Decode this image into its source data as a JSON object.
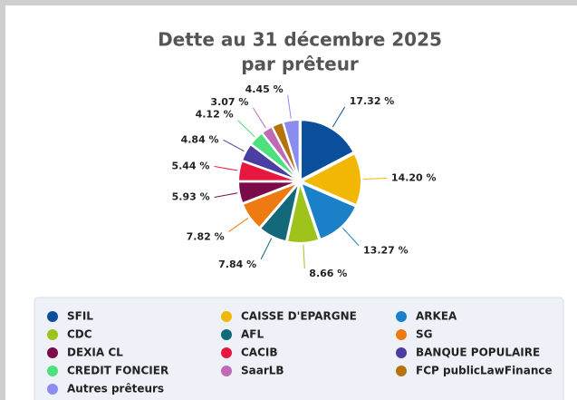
{
  "chart_data": {
    "type": "pie",
    "title": "Dette au 31 décembre 2025",
    "subtitle": "par prêteur",
    "categories": [
      "SFIL",
      "CAISSE D'EPARGNE",
      "ARKEA",
      "CDC",
      "AFL",
      "SG",
      "DEXIA CL",
      "CACIB",
      "BANQUE POPULAIRE",
      "CREDIT FONCIER",
      "SaarLB",
      "FCP publicLawFinance",
      "Autres prêteurs"
    ],
    "values": [
      17.32,
      14.2,
      13.27,
      8.66,
      7.84,
      7.82,
      5.93,
      5.44,
      4.84,
      4.12,
      3.07,
      3.04,
      4.45
    ],
    "value_labels": [
      "17.32 %",
      "14.20 %",
      "13.27 %",
      "8.66 %",
      "7.84 %",
      "7.82 %",
      "5.93 %",
      "5.44 %",
      "4.84 %",
      "4.12 %",
      "3.07 %",
      null,
      "4.45 %"
    ],
    "colors": [
      "#0b4f9c",
      "#f2b705",
      "#1a80c8",
      "#9ec41c",
      "#13687a",
      "#ee7a12",
      "#7a0a4a",
      "#e8173d",
      "#4a3fa0",
      "#4ee07e",
      "#c06ab5",
      "#b5730d",
      "#8a8cf0"
    ],
    "legend": "bottom"
  }
}
